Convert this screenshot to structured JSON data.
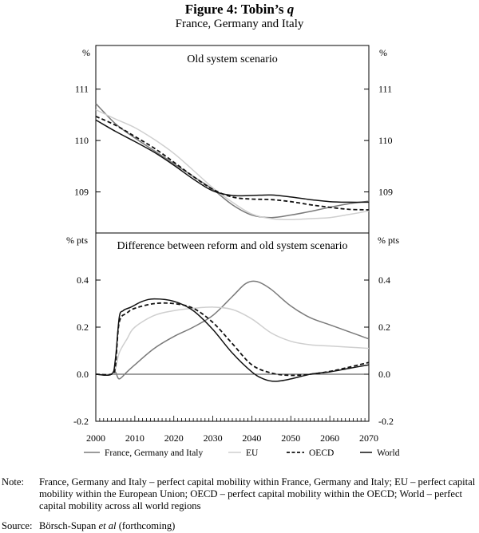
{
  "title": {
    "prefix": "Figure 4: Tobin’s ",
    "variable": "q"
  },
  "subtitle": "France, Germany and Italy",
  "colors": {
    "fgi": "#7a7a7a",
    "eu": "#cfcfcf",
    "oecd": "#111111",
    "world": "#111111"
  },
  "chart_data": [
    {
      "type": "line",
      "title": "Old system scenario",
      "ylabel_left": "%",
      "ylabel_right": "%",
      "ylim": [
        108.2,
        111.85
      ],
      "yticks": [
        109,
        110,
        111
      ],
      "ytick_labels": [
        "109",
        "110",
        "111"
      ],
      "xlim": [
        2000,
        2070
      ],
      "series": [
        {
          "name": "France, Germany and Italy",
          "style": "fgi",
          "x": [
            2000,
            2005,
            2010,
            2015,
            2020,
            2025,
            2030,
            2035,
            2040,
            2045,
            2050,
            2055,
            2060,
            2065,
            2070
          ],
          "y": [
            110.72,
            110.33,
            110.05,
            109.8,
            109.55,
            109.3,
            109.05,
            108.75,
            108.55,
            108.5,
            108.55,
            108.62,
            108.7,
            108.77,
            108.82
          ]
        },
        {
          "name": "EU",
          "style": "eu",
          "x": [
            2000,
            2005,
            2010,
            2015,
            2020,
            2025,
            2030,
            2035,
            2040,
            2045,
            2050,
            2055,
            2060,
            2065,
            2070
          ],
          "y": [
            110.6,
            110.42,
            110.25,
            110.02,
            109.75,
            109.42,
            109.08,
            108.8,
            108.57,
            108.48,
            108.46,
            108.48,
            108.5,
            108.56,
            108.63
          ]
        },
        {
          "name": "OECD",
          "style": "oecd",
          "x": [
            2000,
            2005,
            2010,
            2015,
            2020,
            2025,
            2030,
            2035,
            2040,
            2045,
            2050,
            2055,
            2060,
            2065,
            2070
          ],
          "y": [
            110.47,
            110.3,
            110.08,
            109.85,
            109.58,
            109.3,
            109.05,
            108.9,
            108.86,
            108.85,
            108.81,
            108.75,
            108.7,
            108.66,
            108.65
          ]
        },
        {
          "name": "World",
          "style": "world",
          "x": [
            2000,
            2005,
            2010,
            2015,
            2020,
            2025,
            2030,
            2035,
            2040,
            2045,
            2050,
            2055,
            2060,
            2065,
            2070
          ],
          "y": [
            110.4,
            110.18,
            109.98,
            109.77,
            109.52,
            109.25,
            109.02,
            108.93,
            108.93,
            108.94,
            108.9,
            108.85,
            108.81,
            108.8,
            108.8
          ]
        }
      ]
    },
    {
      "type": "line",
      "title": "Difference between reform and old system scenario",
      "ylabel_left": "% pts",
      "ylabel_right": "% pts",
      "ylim": [
        -0.2,
        0.6
      ],
      "yticks": [
        -0.2,
        0,
        0.2,
        0.4
      ],
      "ytick_labels": [
        "-0.2",
        "0.0",
        "0.2",
        "0.4"
      ],
      "xlim": [
        2000,
        2070
      ],
      "xticks": [
        2000,
        2010,
        2020,
        2030,
        2040,
        2050,
        2060,
        2070
      ],
      "xtick_labels": [
        "2000",
        "2010",
        "2020",
        "2030",
        "2040",
        "2050",
        "2060",
        "2070"
      ],
      "series": [
        {
          "name": "France, Germany and Italy",
          "style": "fgi",
          "x": [
            2000,
            2004,
            2005,
            2006,
            2008,
            2010,
            2015,
            2020,
            2025,
            2030,
            2035,
            2038,
            2040,
            2042,
            2045,
            2050,
            2055,
            2060,
            2065,
            2070
          ],
          "y": [
            0,
            0,
            0.01,
            -0.02,
            0.01,
            0.04,
            0.11,
            0.16,
            0.2,
            0.25,
            0.33,
            0.38,
            0.395,
            0.39,
            0.36,
            0.29,
            0.24,
            0.21,
            0.18,
            0.15
          ]
        },
        {
          "name": "EU",
          "style": "eu",
          "x": [
            2000,
            2004,
            2005,
            2006,
            2008,
            2010,
            2015,
            2020,
            2025,
            2030,
            2035,
            2040,
            2045,
            2050,
            2055,
            2060,
            2065,
            2070
          ],
          "y": [
            0,
            0,
            0.02,
            0.09,
            0.15,
            0.2,
            0.25,
            0.27,
            0.28,
            0.285,
            0.275,
            0.235,
            0.175,
            0.14,
            0.125,
            0.12,
            0.115,
            0.11
          ]
        },
        {
          "name": "OECD",
          "style": "oecd",
          "x": [
            2000,
            2004,
            2005,
            2006,
            2008,
            2010,
            2015,
            2020,
            2025,
            2030,
            2035,
            2040,
            2045,
            2050,
            2055,
            2060,
            2065,
            2070
          ],
          "y": [
            0,
            0,
            0.03,
            0.22,
            0.26,
            0.28,
            0.3,
            0.3,
            0.28,
            0.22,
            0.13,
            0.04,
            0.005,
            -0.005,
            0.0,
            0.012,
            0.03,
            0.05
          ]
        },
        {
          "name": "World",
          "style": "world",
          "x": [
            2000,
            2004,
            2005,
            2006,
            2007,
            2009,
            2012,
            2015,
            2020,
            2025,
            2030,
            2035,
            2040,
            2043,
            2046,
            2050,
            2055,
            2060,
            2065,
            2070
          ],
          "y": [
            0,
            0,
            0.06,
            0.24,
            0.27,
            0.285,
            0.31,
            0.32,
            0.31,
            0.27,
            0.19,
            0.09,
            0.01,
            -0.02,
            -0.03,
            -0.02,
            0.0,
            0.01,
            0.025,
            0.04
          ]
        }
      ]
    }
  ],
  "legend": [
    {
      "label": "France, Germany and Italy",
      "style": "fgi"
    },
    {
      "label": "EU",
      "style": "eu"
    },
    {
      "label": "OECD",
      "style": "oecd"
    },
    {
      "label": "World",
      "style": "world"
    }
  ],
  "note": {
    "label": "Note:",
    "text": "France, Germany and Italy – perfect capital mobility within France, Germany and Italy; EU – perfect capital mobility within the European Union; OECD – perfect capital mobility within the OECD; World – perfect capital mobility across all world regions"
  },
  "source": {
    "label": "Source:",
    "authors": "Börsch-Supan ",
    "etal": "et al",
    "rest": " (forthcoming)"
  }
}
